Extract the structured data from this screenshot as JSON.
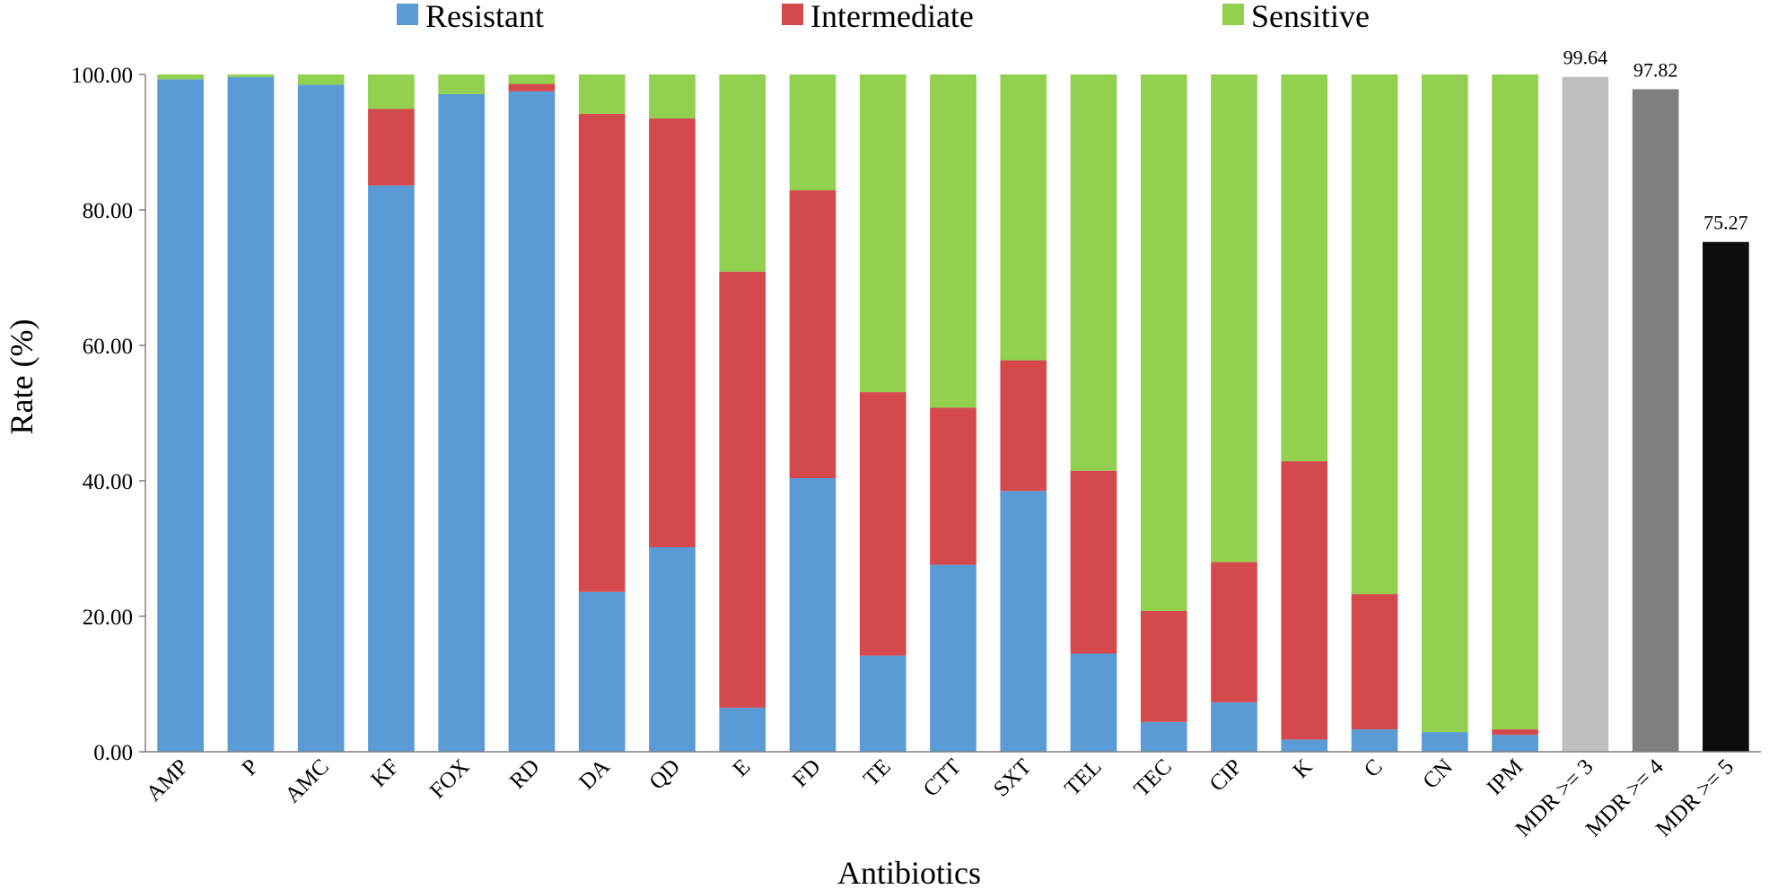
{
  "chart_data": {
    "type": "bar",
    "stacked": true,
    "title": "",
    "xlabel": "Antibiotics",
    "ylabel": "Rate (%)",
    "ylim": [
      0,
      100
    ],
    "yticks": [
      "0.00",
      "20.00",
      "40.00",
      "60.00",
      "80.00",
      "100.00"
    ],
    "grid": false,
    "legend_position": "top",
    "categories": [
      "AMP",
      "P",
      "AMC",
      "KF",
      "FOX",
      "RD",
      "DA",
      "QD",
      "E",
      "FD",
      "TE",
      "CTT",
      "SXT",
      "TEL",
      "TEC",
      "CIP",
      "K",
      "C",
      "CN",
      "IPM"
    ],
    "series": [
      {
        "name": "Resistant",
        "color": "#5b9bd5",
        "values": [
          99.3,
          99.6,
          98.5,
          83.6,
          97.1,
          97.5,
          23.6,
          30.2,
          6.5,
          40.4,
          14.2,
          27.6,
          38.5,
          14.5,
          4.4,
          7.3,
          1.8,
          3.3,
          2.9,
          2.5
        ]
      },
      {
        "name": "Intermediate",
        "color": "#d4494c",
        "values": [
          0.0,
          0.0,
          0.0,
          11.3,
          0.0,
          1.1,
          70.6,
          63.3,
          64.4,
          42.5,
          38.9,
          23.2,
          19.3,
          27.0,
          16.4,
          20.7,
          41.1,
          20.0,
          0.0,
          0.8
        ]
      },
      {
        "name": "Sensitive",
        "color": "#92d050",
        "values": [
          0.7,
          0.4,
          1.5,
          5.1,
          2.9,
          1.4,
          5.8,
          6.5,
          29.1,
          17.1,
          46.9,
          49.2,
          42.2,
          58.5,
          79.2,
          72.0,
          57.1,
          76.7,
          97.1,
          96.7
        ]
      }
    ],
    "mdr": {
      "categories": [
        "MDR >= 3",
        "MDR >= 4",
        "MDR >= 5"
      ],
      "values": [
        99.64,
        97.82,
        75.27
      ],
      "labels": [
        "99.64",
        "97.82",
        "75.27"
      ],
      "colors": [
        "#bfbfbf",
        "#7f7f7f",
        "#0d0d0d"
      ]
    }
  }
}
